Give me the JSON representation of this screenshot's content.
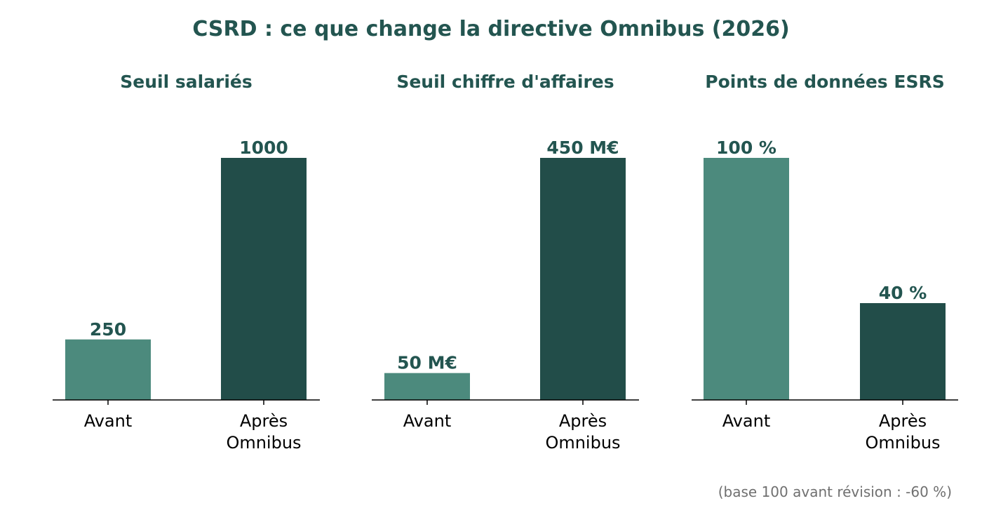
{
  "title": "CSRD : ce que change la directive Omnibus (2026)",
  "footnote": "(base 100 avant révision : -60 %)",
  "colors": {
    "title": "#235550",
    "before": "#4c8a7d",
    "after": "#224d49",
    "axis": "#000000",
    "footnote": "#707070"
  },
  "chart_data": [
    {
      "type": "bar",
      "title": "Seuil salariés",
      "categories": [
        "Avant",
        "Après\nOmnibus"
      ],
      "values": [
        250,
        1000
      ],
      "value_labels": [
        "250",
        "1000"
      ],
      "ylim": [
        0,
        1000
      ]
    },
    {
      "type": "bar",
      "title": "Seuil chiffre d'affaires",
      "categories": [
        "Avant",
        "Après\nOmnibus"
      ],
      "values": [
        50,
        450
      ],
      "value_labels": [
        "50 M€",
        "450 M€"
      ],
      "ylim": [
        0,
        450
      ]
    },
    {
      "type": "bar",
      "title": "Points de données ESRS",
      "categories": [
        "Avant",
        "Après\nOmnibus"
      ],
      "values": [
        100,
        40
      ],
      "value_labels": [
        "100 %",
        "40 %"
      ],
      "ylim": [
        0,
        100
      ]
    }
  ]
}
